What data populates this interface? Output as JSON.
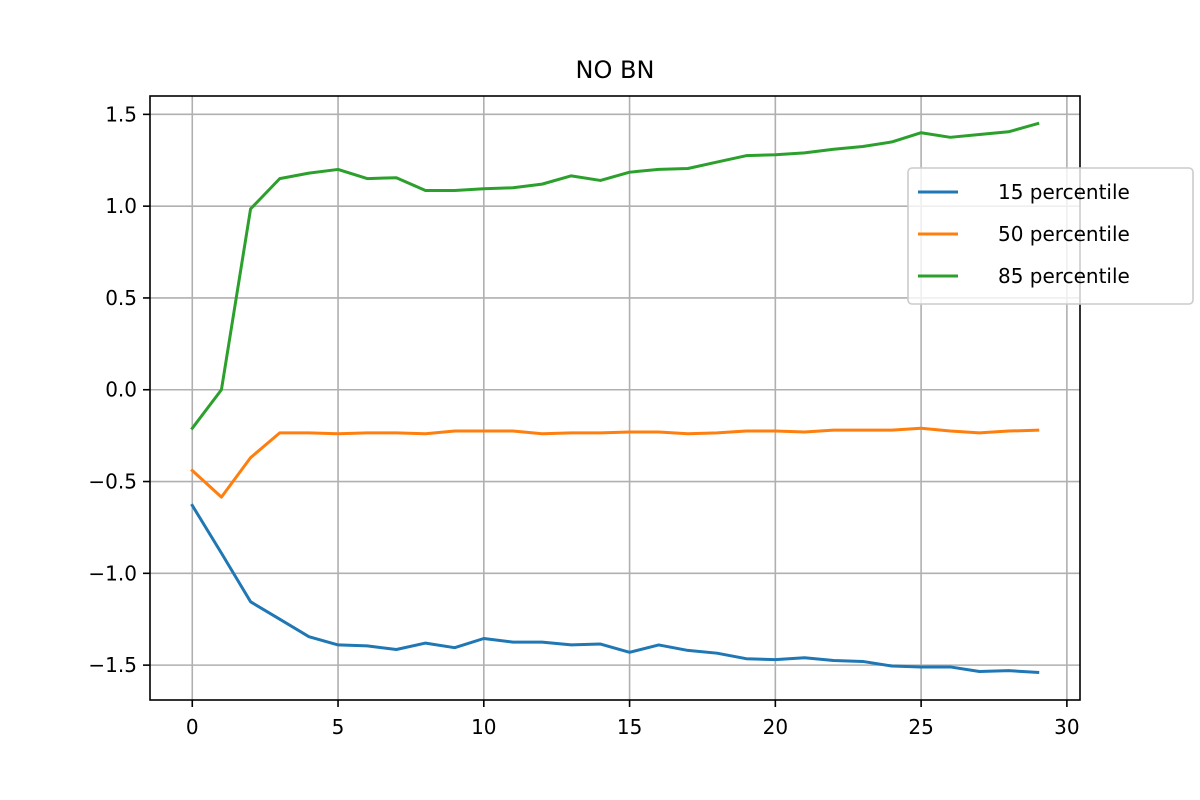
{
  "chart_data": {
    "type": "line",
    "title": "NO BN",
    "xlabel": "",
    "ylabel": "",
    "xlim": [
      -1.45,
      30.45
    ],
    "ylim": [
      -1.69,
      1.6
    ],
    "x_ticks": [
      0,
      5,
      10,
      15,
      20,
      25,
      30
    ],
    "y_ticks": [
      1.5,
      1.0,
      0.5,
      0.0,
      -0.5,
      -1.0,
      -1.5
    ],
    "y_tick_labels": [
      "1.5",
      "1.0",
      "0.5",
      "0.0",
      "−0.5",
      "−1.0",
      "−1.5"
    ],
    "grid": true,
    "legend_position": "right, slightly outside axes",
    "x": [
      0,
      1,
      2,
      3,
      4,
      5,
      6,
      7,
      8,
      9,
      10,
      11,
      12,
      13,
      14,
      15,
      16,
      17,
      18,
      19,
      20,
      21,
      22,
      23,
      24,
      25,
      26,
      27,
      28,
      29
    ],
    "series": [
      {
        "name": "15 percentile",
        "color": "#1f77b4",
        "values": [
          -0.63,
          -0.89,
          -1.155,
          -1.25,
          -1.345,
          -1.39,
          -1.395,
          -1.415,
          -1.38,
          -1.405,
          -1.355,
          -1.375,
          -1.375,
          -1.39,
          -1.385,
          -1.43,
          -1.39,
          -1.42,
          -1.435,
          -1.465,
          -1.47,
          -1.46,
          -1.475,
          -1.48,
          -1.505,
          -1.51,
          -1.51,
          -1.535,
          -1.53,
          -1.54
        ]
      },
      {
        "name": "50 percentile",
        "color": "#ff7f0e",
        "values": [
          -0.44,
          -0.585,
          -0.37,
          -0.235,
          -0.235,
          -0.24,
          -0.235,
          -0.235,
          -0.24,
          -0.225,
          -0.225,
          -0.225,
          -0.24,
          -0.235,
          -0.235,
          -0.23,
          -0.23,
          -0.24,
          -0.235,
          -0.225,
          -0.225,
          -0.23,
          -0.22,
          -0.22,
          -0.22,
          -0.21,
          -0.225,
          -0.235,
          -0.225,
          -0.22
        ]
      },
      {
        "name": "85 percentile",
        "color": "#2ca02c",
        "values": [
          -0.21,
          0.0,
          0.985,
          1.15,
          1.18,
          1.2,
          1.15,
          1.155,
          1.085,
          1.085,
          1.095,
          1.1,
          1.12,
          1.165,
          1.14,
          1.185,
          1.2,
          1.205,
          1.24,
          1.275,
          1.28,
          1.29,
          1.31,
          1.325,
          1.35,
          1.4,
          1.375,
          1.39,
          1.405,
          1.45
        ]
      }
    ]
  }
}
